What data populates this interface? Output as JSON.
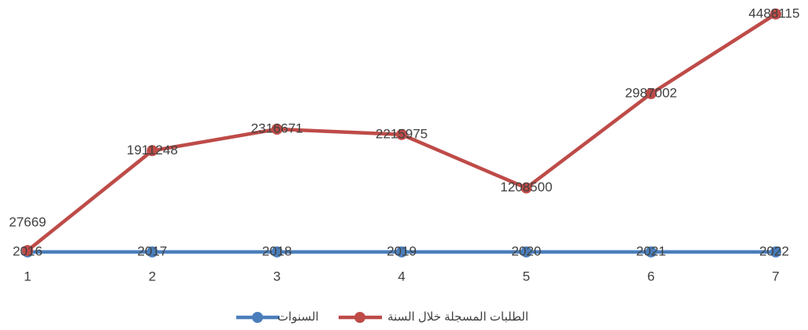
{
  "chart_data": {
    "type": "line",
    "categories": [
      "1",
      "2",
      "3",
      "4",
      "5",
      "6",
      "7"
    ],
    "series": [
      {
        "name": "السنوات",
        "color": "#4a7ebb",
        "values": [
          2016,
          2017,
          2018,
          2019,
          2020,
          2021,
          2022
        ]
      },
      {
        "name": "الطلبات المسجلة خلال السنة",
        "color": "#be4b48",
        "values": [
          27669,
          1911248,
          2316671,
          2215975,
          1208500,
          2987002,
          4488115
        ]
      }
    ],
    "ylim": [
      0,
      4500000
    ],
    "legend": "bottom"
  }
}
